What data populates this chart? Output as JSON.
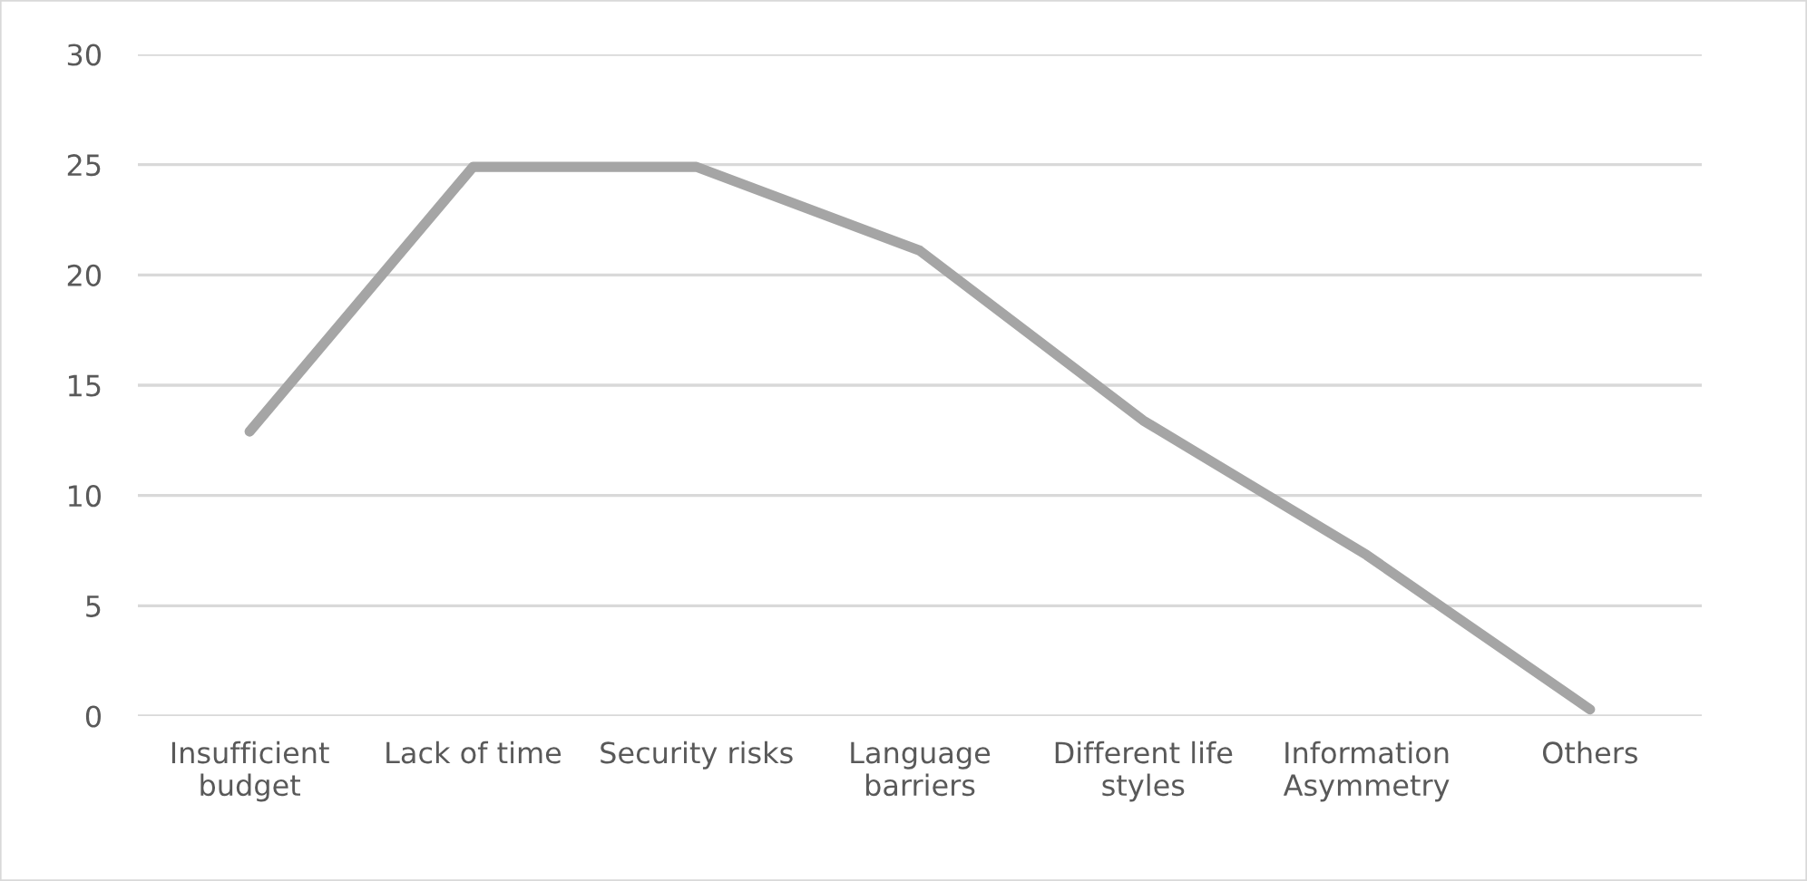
{
  "chart_data": {
    "type": "line",
    "categories": [
      "Insufficient\nbudget",
      "Lack of time",
      "Security risks",
      "Language\nbarriers",
      "Different life\nstyles",
      "Information\nAsymmetry",
      "Others"
    ],
    "series": [
      {
        "color": "#a5a5a5",
        "values": [
          12.9,
          24.9,
          24.9,
          21.1,
          13.4,
          7.3,
          0.3
        ]
      }
    ],
    "ylim": [
      0,
      30
    ],
    "yticks": [
      0,
      5,
      10,
      15,
      20,
      25,
      30
    ],
    "grid": "y",
    "marker": "none",
    "line_style": "solid"
  }
}
